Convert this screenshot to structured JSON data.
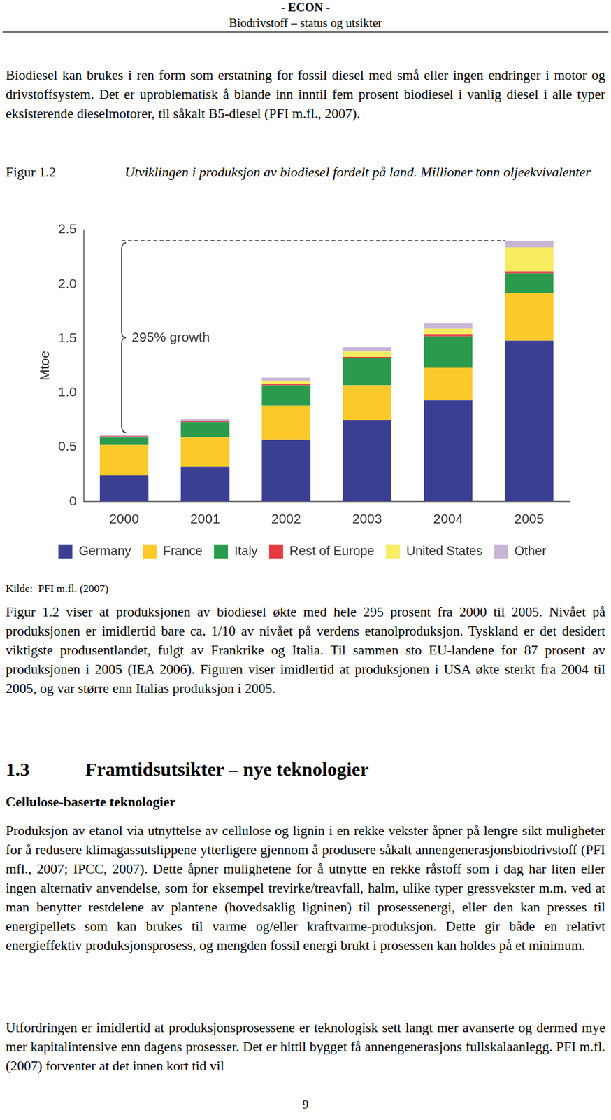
{
  "header": {
    "title": "- ECON -",
    "subtitle": "Biodrivstoff – status og utsikter"
  },
  "intro_paragraph": "Biodiesel kan brukes i ren form som erstatning for fossil diesel med små eller ingen endringer i motor og drivstoffsystem. Det er uproblematisk å blande inn inntil fem prosent biodiesel i vanlig diesel i alle typer eksisterende dieselmotorer, til såkalt B5-diesel (PFI m.fl., 2007).",
  "figure": {
    "label": "Figur 1.2",
    "caption": "Utviklingen i produksjon av biodiesel fordelt på land. Millioner tonn oljeekvivalenter",
    "source": "Kilde:  PFI m.fl. (2007)"
  },
  "chart_data": {
    "type": "bar",
    "stacked": true,
    "y_label": "Mtoe",
    "categories": [
      "2000",
      "2001",
      "2002",
      "2003",
      "2004",
      "2005"
    ],
    "series": [
      {
        "name": "Germany",
        "color": "#3b3f93",
        "values": [
          0.24,
          0.32,
          0.57,
          0.75,
          0.93,
          1.48
        ]
      },
      {
        "name": "France",
        "color": "#fcc92b",
        "values": [
          0.28,
          0.27,
          0.31,
          0.32,
          0.3,
          0.44
        ]
      },
      {
        "name": "Italy",
        "color": "#2a9a4c",
        "values": [
          0.07,
          0.14,
          0.19,
          0.25,
          0.29,
          0.18
        ]
      },
      {
        "name": "Rest of Europe",
        "color": "#e63a3f",
        "values": [
          0.01,
          0.01,
          0.01,
          0.01,
          0.02,
          0.02
        ]
      },
      {
        "name": "United States",
        "color": "#f8ec62",
        "values": [
          0.0,
          0.0,
          0.03,
          0.05,
          0.05,
          0.22
        ]
      },
      {
        "name": "Other",
        "color": "#c8b5d5",
        "values": [
          0.01,
          0.02,
          0.03,
          0.04,
          0.05,
          0.06
        ]
      }
    ],
    "ylim": [
      0,
      2.5
    ],
    "yticks": [
      0,
      0.5,
      {
        "value": 1,
        "label": "1.0"
      },
      1.5,
      {
        "value": 2,
        "label": "2.0"
      },
      2.5
    ],
    "grid": false,
    "legend": "bottom",
    "annotations": [
      {
        "text": "295% growth"
      }
    ]
  },
  "body_paragraph": "Figur 1.2 viser at produksjonen av biodiesel økte med hele 295 prosent fra 2000 til 2005. Nivået på produksjonen er imidlertid bare ca. 1/10 av nivået på verdens etanolproduksjon. Tyskland er det desidert viktigste produsentlandet, fulgt av Frankrike og Italia. Til sammen sto EU-landene for 87 prosent av produksjonen i 2005 (IEA 2006). Figuren viser imidlertid at produksjonen i USA økte sterkt fra 2004 til 2005, og var større enn Italias produksjon i 2005.",
  "section": {
    "number": "1.3",
    "title": "Framtidsutsikter – nye teknologier"
  },
  "subsection": "Cellulose-baserte teknologier",
  "section_paragraphs": [
    "Produksjon av etanol via utnyttelse av cellulose og lignin i en rekke vekster åpner på lengre sikt muligheter for å redusere klimagassutslippene ytterligere gjennom å produsere såkalt annengenerasjonsbiodrivstoff (PFI mfl., 2007; IPCC, 2007). Dette åpner mulighetene for å utnytte en rekke råstoff som i dag har liten eller ingen alternativ anvendelse, som for eksempel trevirke/treavfall, halm, ulike typer gressvekster m.m. ved at man benytter restdelene av plantene (hovedsaklig ligninen) til prosessenergi, eller den kan presses til energipellets som kan brukes til varme og/eller kraftvarme-produksjon. Dette gir både en relativt energieffektiv produksjonsprosess, og mengden fossil energi brukt i prosessen kan holdes på et minimum.",
    "Utfordringen er imidlertid at produksjonsprosessene er teknologisk sett langt mer avanserte og dermed mye mer kapitalintensive enn dagens prosesser. Det er hittil bygget få annengenerasjons fullskalaanlegg. PFI m.fl. (2007) forventer at det innen kort tid vil"
  ],
  "page_number": "9"
}
